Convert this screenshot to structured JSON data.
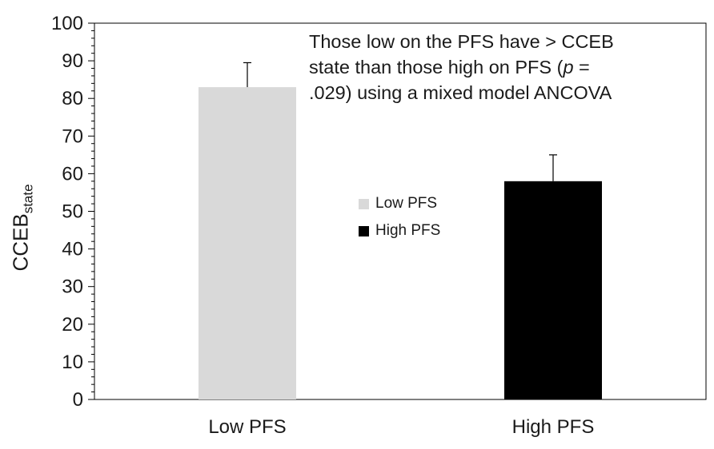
{
  "chart_data": {
    "type": "bar",
    "categories": [
      "Low PFS",
      "High PFS"
    ],
    "values": [
      83,
      58
    ],
    "error_bars_upper": [
      89.5,
      65
    ],
    "colors": [
      "#d9d9d9",
      "#000000"
    ],
    "ylabel": "CCEB",
    "ylabel_subscript": "state",
    "ylim": [
      0,
      100
    ],
    "yticks": [
      "0",
      "10",
      "20",
      "30",
      "40",
      "50",
      "60",
      "70",
      "80",
      "90",
      "100"
    ],
    "grid": false,
    "legend": {
      "placement": "center",
      "entries": [
        {
          "label": "Low PFS",
          "color": "#d9d9d9"
        },
        {
          "label": "High PFS",
          "color": "#000000"
        }
      ]
    },
    "annotation": {
      "line1": "Those low on the PFS have > CCEB",
      "line2_pre": "state than those high on PFS (",
      "line2_italic": "p",
      "line2_post": " =",
      "line3": ".029) using a mixed model ANCOVA"
    }
  }
}
